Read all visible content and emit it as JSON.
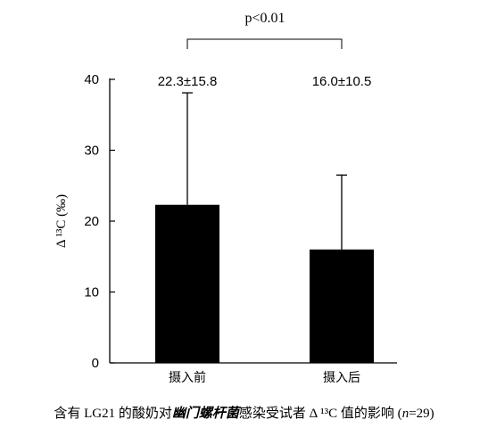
{
  "chart_data": {
    "type": "bar",
    "categories": [
      "摄入前",
      "摄入后"
    ],
    "values": [
      22.3,
      16.0
    ],
    "errors": [
      15.8,
      10.5
    ],
    "value_labels": [
      "22.3±15.8",
      "16.0±10.5"
    ],
    "ylabel": "Δ ¹³C (‰)",
    "ylim": [
      0,
      40
    ],
    "yticks": [
      "0",
      "10",
      "20",
      "30",
      "40"
    ],
    "significance": "p<0.01",
    "bar_color": "#000000",
    "grid": false
  },
  "caption": {
    "prefix": "含有 LG21 的酸奶对",
    "pathogen": "幽门螺杆菌",
    "suffix": "感染受试者 Δ ¹³C 值的影响 (",
    "n_symbol": "n",
    "n_value": "=29)"
  }
}
